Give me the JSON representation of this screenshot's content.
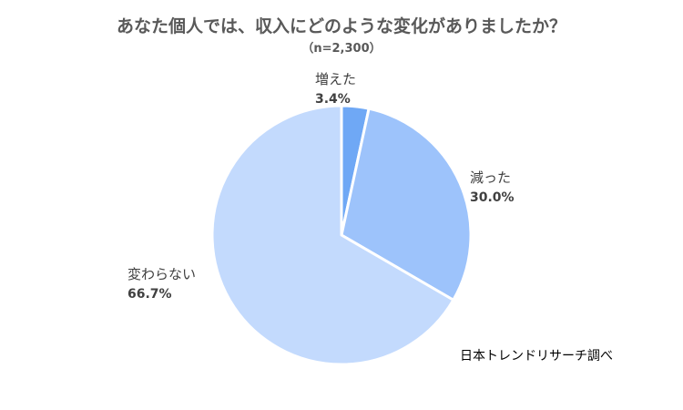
{
  "chart_data": {
    "type": "pie",
    "title": "あなた個人では、収入にどのような変化がありましたか？",
    "subtitle": "（n=2,300）",
    "categories": [
      "増えた",
      "減った",
      "変わらない"
    ],
    "values": [
      3.4,
      30.0,
      66.7
    ],
    "value_labels": [
      "3.4%",
      "30.0%",
      "66.7%"
    ],
    "colors": [
      "#6fa8f5",
      "#9dc3fb",
      "#c3dafd"
    ],
    "legend": "none"
  },
  "source": "日本トレンドリサーチ調べ"
}
